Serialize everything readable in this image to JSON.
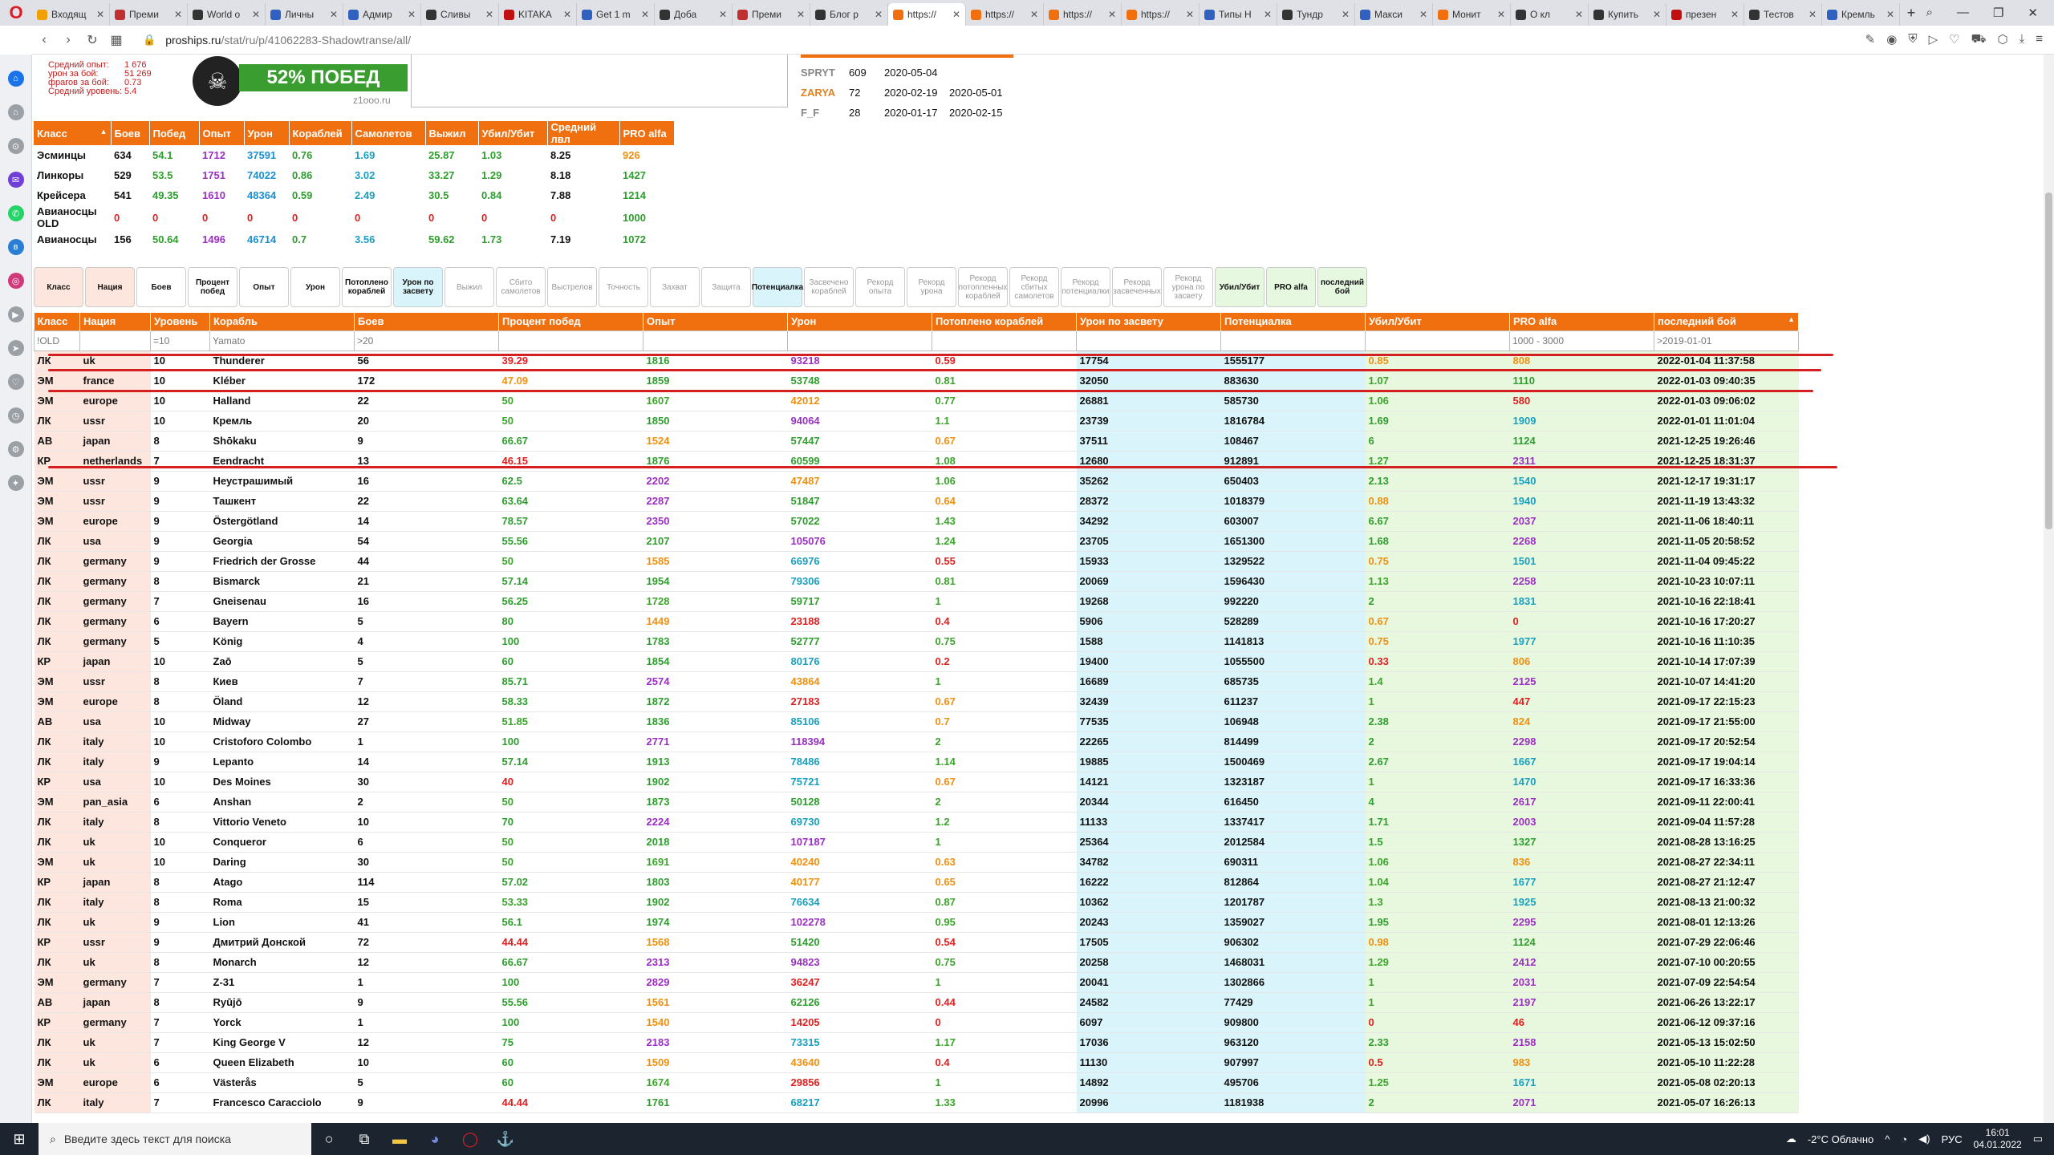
{
  "tabs": [
    {
      "label": "Входящ",
      "color": "#f0a000"
    },
    {
      "label": "Преми",
      "color": "#c03030"
    },
    {
      "label": "World o",
      "color": "#333333"
    },
    {
      "label": "Личны",
      "color": "#3060c0"
    },
    {
      "label": "Адмир",
      "color": "#3060c0"
    },
    {
      "label": "Сливы",
      "color": "#333333"
    },
    {
      "label": "KITAKA",
      "color": "#c01010"
    },
    {
      "label": "Get 1 m",
      "color": "#3060c0"
    },
    {
      "label": "Доба",
      "color": "#333333"
    },
    {
      "label": "Преми",
      "color": "#c03030"
    },
    {
      "label": "Блог р",
      "color": "#333333"
    },
    {
      "label": "https://",
      "color": "#f07010",
      "active": true
    },
    {
      "label": "https://",
      "color": "#f07010"
    },
    {
      "label": "https://",
      "color": "#f07010"
    },
    {
      "label": "https://",
      "color": "#f07010"
    },
    {
      "label": "Типы Н",
      "color": "#3060c0"
    },
    {
      "label": "Тундр",
      "color": "#333333"
    },
    {
      "label": "Макси",
      "color": "#3060c0"
    },
    {
      "label": "Монит",
      "color": "#f07010"
    },
    {
      "label": "О кл",
      "color": "#333333"
    },
    {
      "label": "Купить",
      "color": "#333333"
    },
    {
      "label": "презен",
      "color": "#c01010"
    },
    {
      "label": "Тестов",
      "color": "#333333"
    },
    {
      "label": "Кремль",
      "color": "#3060c0"
    }
  ],
  "address": {
    "domain": "proships.ru",
    "path": "/stat/ru/p/41062283-Shadowtranse/all/"
  },
  "summary": [
    {
      "k": "Средний опыт:",
      "v": "1 676"
    },
    {
      "k": "урон за бой:",
      "v": "51 269"
    },
    {
      "k": "фрагов за бой:",
      "v": "0.73"
    },
    {
      "k": "Средний уровень:",
      "v": "5.4"
    }
  ],
  "banner": {
    "win_text": "52% ПОБЕД",
    "site": "z1ooo.ru"
  },
  "clans": [
    {
      "tag": "SPRYT",
      "count": "609",
      "from": "2020-05-04",
      "to": "",
      "color": "#888888"
    },
    {
      "tag": "ZARYA",
      "count": "72",
      "from": "2020-02-19",
      "to": "2020-05-01",
      "color": "#e08020"
    },
    {
      "tag": "F_F",
      "count": "28",
      "from": "2020-01-17",
      "to": "2020-02-15",
      "color": "#888888"
    }
  ],
  "class_table": {
    "headers": [
      "Класс",
      "Боев",
      "Побед",
      "Опыт",
      "Урон",
      "Кораблей",
      "Самолетов",
      "Выжил",
      "Убил/Убит",
      "Средний лвл",
      "PRO alfa"
    ],
    "rows": [
      [
        "Эсминцы",
        "634",
        "54.1",
        "1712",
        "37591",
        "0.76",
        "1.69",
        "25.87",
        "1.03",
        "8.25",
        "926"
      ],
      [
        "Линкоры",
        "529",
        "53.5",
        "1751",
        "74022",
        "0.86",
        "3.02",
        "33.27",
        "1.29",
        "8.18",
        "1427"
      ],
      [
        "Крейсера",
        "541",
        "49.35",
        "1610",
        "48364",
        "0.59",
        "2.49",
        "30.5",
        "0.84",
        "7.88",
        "1214"
      ],
      [
        "Авианосцы OLD",
        "0",
        "0",
        "0",
        "0",
        "0",
        "0",
        "0",
        "0",
        "0",
        "1000"
      ],
      [
        "Авианосцы",
        "156",
        "50.64",
        "1496",
        "46714",
        "0.7",
        "3.56",
        "59.62",
        "1.73",
        "7.19",
        "1072"
      ]
    ]
  },
  "filters": [
    {
      "label": "Класс",
      "on": true,
      "style": "pink"
    },
    {
      "label": "Нация",
      "on": true,
      "style": "pink"
    },
    {
      "label": "Боев",
      "on": true,
      "style": ""
    },
    {
      "label": "Процент побед",
      "on": true,
      "style": ""
    },
    {
      "label": "Опыт",
      "on": true,
      "style": ""
    },
    {
      "label": "Урон",
      "on": true,
      "style": ""
    },
    {
      "label": "Потоплено кораблей",
      "on": true,
      "style": ""
    },
    {
      "label": "Урон по засвету",
      "on": true,
      "style": "cyan"
    },
    {
      "label": "Выжил",
      "on": false,
      "style": ""
    },
    {
      "label": "Сбито самолетов",
      "on": false,
      "style": ""
    },
    {
      "label": "Выстрелов",
      "on": false,
      "style": ""
    },
    {
      "label": "Точность",
      "on": false,
      "style": ""
    },
    {
      "label": "Захват",
      "on": false,
      "style": ""
    },
    {
      "label": "Защита",
      "on": false,
      "style": ""
    },
    {
      "label": "Потенциалка",
      "on": true,
      "style": "cyan"
    },
    {
      "label": "Засвечено кораблей",
      "on": false,
      "style": ""
    },
    {
      "label": "Рекорд опыта",
      "on": false,
      "style": ""
    },
    {
      "label": "Рекорд урона",
      "on": false,
      "style": ""
    },
    {
      "label": "Рекорд потопленных кораблей",
      "on": false,
      "style": ""
    },
    {
      "label": "Рекорд сбитых самолетов",
      "on": false,
      "style": ""
    },
    {
      "label": "Рекорд потенциалки",
      "on": false,
      "style": ""
    },
    {
      "label": "Рекорд засвеченных",
      "on": false,
      "style": ""
    },
    {
      "label": "Рекорд урона по засвету",
      "on": false,
      "style": ""
    },
    {
      "label": "Убил/Убит",
      "on": true,
      "style": "green"
    },
    {
      "label": "PRO alfa",
      "on": true,
      "style": "green"
    },
    {
      "label": "последний бой",
      "on": true,
      "style": "green"
    }
  ],
  "main_table": {
    "headers": [
      "Класс",
      "Нация",
      "Уровень",
      "Корабль",
      "Боев",
      "Процент побед",
      "Опыт",
      "Урон",
      "Потоплено кораблей",
      "Урон по засвету",
      "Потенциалка",
      "Убил/Убит",
      "PRO alfa",
      "последний бой"
    ],
    "filters": [
      "!OLD",
      "",
      "=10",
      "Yamato",
      ">20",
      "",
      "",
      "",
      "",
      "",
      "",
      "",
      "1000 - 3000",
      ">2019-01-01"
    ],
    "rows": [
      [
        "ЛК",
        "uk",
        "10",
        "Thunderer",
        "56",
        "39.29",
        "1816",
        "93218",
        "0.59",
        "17754",
        "1555177",
        "0.85",
        "808",
        "2022-01-04 11:37:58"
      ],
      [
        "ЭМ",
        "france",
        "10",
        "Kléber",
        "172",
        "47.09",
        "1859",
        "53748",
        "0.81",
        "32050",
        "883630",
        "1.07",
        "1110",
        "2022-01-03 09:40:35"
      ],
      [
        "ЭМ",
        "europe",
        "10",
        "Halland",
        "22",
        "50",
        "1607",
        "42012",
        "0.77",
        "26881",
        "585730",
        "1.06",
        "580",
        "2022-01-03 09:06:02"
      ],
      [
        "ЛК",
        "ussr",
        "10",
        "Кремль",
        "20",
        "50",
        "1850",
        "94064",
        "1.1",
        "23739",
        "1816784",
        "1.69",
        "1909",
        "2022-01-01 11:01:04"
      ],
      [
        "АВ",
        "japan",
        "8",
        "Shōkaku",
        "9",
        "66.67",
        "1524",
        "57447",
        "0.67",
        "37511",
        "108467",
        "6",
        "1124",
        "2021-12-25 19:26:46"
      ],
      [
        "КР",
        "netherlands",
        "7",
        "Eendracht",
        "13",
        "46.15",
        "1876",
        "60599",
        "1.08",
        "12680",
        "912891",
        "1.27",
        "2311",
        "2021-12-25 18:31:37"
      ],
      [
        "ЭМ",
        "ussr",
        "9",
        "Неустрашимый",
        "16",
        "62.5",
        "2202",
        "47487",
        "1.06",
        "35262",
        "650403",
        "2.13",
        "1540",
        "2021-12-17 19:31:17"
      ],
      [
        "ЭМ",
        "ussr",
        "9",
        "Ташкент",
        "22",
        "63.64",
        "2287",
        "51847",
        "0.64",
        "28372",
        "1018379",
        "0.88",
        "1940",
        "2021-11-19 13:43:32"
      ],
      [
        "ЭМ",
        "europe",
        "9",
        "Östergötland",
        "14",
        "78.57",
        "2350",
        "57022",
        "1.43",
        "34292",
        "603007",
        "6.67",
        "2037",
        "2021-11-06 18:40:11"
      ],
      [
        "ЛК",
        "usa",
        "9",
        "Georgia",
        "54",
        "55.56",
        "2107",
        "105076",
        "1.24",
        "23705",
        "1651300",
        "1.68",
        "2268",
        "2021-11-05 20:58:52"
      ],
      [
        "ЛК",
        "germany",
        "9",
        "Friedrich der Grosse",
        "44",
        "50",
        "1585",
        "66976",
        "0.55",
        "15933",
        "1329522",
        "0.75",
        "1501",
        "2021-11-04 09:45:22"
      ],
      [
        "ЛК",
        "germany",
        "8",
        "Bismarck",
        "21",
        "57.14",
        "1954",
        "79306",
        "0.81",
        "20069",
        "1596430",
        "1.13",
        "2258",
        "2021-10-23 10:07:11"
      ],
      [
        "ЛК",
        "germany",
        "7",
        "Gneisenau",
        "16",
        "56.25",
        "1728",
        "59717",
        "1",
        "19268",
        "992220",
        "2",
        "1831",
        "2021-10-16 22:18:41"
      ],
      [
        "ЛК",
        "germany",
        "6",
        "Bayern",
        "5",
        "80",
        "1449",
        "23188",
        "0.4",
        "5906",
        "528289",
        "0.67",
        "0",
        "2021-10-16 17:20:27"
      ],
      [
        "ЛК",
        "germany",
        "5",
        "König",
        "4",
        "100",
        "1783",
        "52777",
        "0.75",
        "1588",
        "1141813",
        "0.75",
        "1977",
        "2021-10-16 11:10:35"
      ],
      [
        "КР",
        "japan",
        "10",
        "Zaō",
        "5",
        "60",
        "1854",
        "80176",
        "0.2",
        "19400",
        "1055500",
        "0.33",
        "806",
        "2021-10-14 17:07:39"
      ],
      [
        "ЭМ",
        "ussr",
        "8",
        "Киев",
        "7",
        "85.71",
        "2574",
        "43864",
        "1",
        "16689",
        "685735",
        "1.4",
        "2125",
        "2021-10-07 14:41:20"
      ],
      [
        "ЭМ",
        "europe",
        "8",
        "Öland",
        "12",
        "58.33",
        "1872",
        "27183",
        "0.67",
        "32439",
        "611237",
        "1",
        "447",
        "2021-09-17 22:15:23"
      ],
      [
        "АВ",
        "usa",
        "10",
        "Midway",
        "27",
        "51.85",
        "1836",
        "85106",
        "0.7",
        "77535",
        "106948",
        "2.38",
        "824",
        "2021-09-17 21:55:00"
      ],
      [
        "ЛК",
        "italy",
        "10",
        "Cristoforo Colombo",
        "1",
        "100",
        "2771",
        "118394",
        "2",
        "22265",
        "814499",
        "2",
        "2298",
        "2021-09-17 20:52:54"
      ],
      [
        "ЛК",
        "italy",
        "9",
        "Lepanto",
        "14",
        "57.14",
        "1913",
        "78486",
        "1.14",
        "19885",
        "1500469",
        "2.67",
        "1667",
        "2021-09-17 19:04:14"
      ],
      [
        "КР",
        "usa",
        "10",
        "Des Moines",
        "30",
        "40",
        "1902",
        "75721",
        "0.67",
        "14121",
        "1323187",
        "1",
        "1470",
        "2021-09-17 16:33:36"
      ],
      [
        "ЭМ",
        "pan_asia",
        "6",
        "Anshan",
        "2",
        "50",
        "1873",
        "50128",
        "2",
        "20344",
        "616450",
        "4",
        "2617",
        "2021-09-11 22:00:41"
      ],
      [
        "ЛК",
        "italy",
        "8",
        "Vittorio Veneto",
        "10",
        "70",
        "2224",
        "69730",
        "1.2",
        "11133",
        "1337417",
        "1.71",
        "2003",
        "2021-09-04 11:57:28"
      ],
      [
        "ЛК",
        "uk",
        "10",
        "Conqueror",
        "6",
        "50",
        "2018",
        "107187",
        "1",
        "25364",
        "2012584",
        "1.5",
        "1327",
        "2021-08-28 13:16:25"
      ],
      [
        "ЭМ",
        "uk",
        "10",
        "Daring",
        "30",
        "50",
        "1691",
        "40240",
        "0.63",
        "34782",
        "690311",
        "1.06",
        "836",
        "2021-08-27 22:34:11"
      ],
      [
        "КР",
        "japan",
        "8",
        "Atago",
        "114",
        "57.02",
        "1803",
        "40177",
        "0.65",
        "16222",
        "812864",
        "1.04",
        "1677",
        "2021-08-27 21:12:47"
      ],
      [
        "ЛК",
        "italy",
        "8",
        "Roma",
        "15",
        "53.33",
        "1902",
        "76634",
        "0.87",
        "10362",
        "1201787",
        "1.3",
        "1925",
        "2021-08-13 21:00:32"
      ],
      [
        "ЛК",
        "uk",
        "9",
        "Lion",
        "41",
        "56.1",
        "1974",
        "102278",
        "0.95",
        "20243",
        "1359027",
        "1.95",
        "2295",
        "2021-08-01 12:13:26"
      ],
      [
        "КР",
        "ussr",
        "9",
        "Дмитрий Донской",
        "72",
        "44.44",
        "1568",
        "51420",
        "0.54",
        "17505",
        "906302",
        "0.98",
        "1124",
        "2021-07-29 22:06:46"
      ],
      [
        "ЛК",
        "uk",
        "8",
        "Monarch",
        "12",
        "66.67",
        "2313",
        "94823",
        "0.75",
        "20258",
        "1468031",
        "1.29",
        "2412",
        "2021-07-10 00:20:55"
      ],
      [
        "ЭМ",
        "germany",
        "7",
        "Z-31",
        "1",
        "100",
        "2829",
        "36247",
        "1",
        "20041",
        "1302866",
        "1",
        "2031",
        "2021-07-09 22:54:54"
      ],
      [
        "АВ",
        "japan",
        "8",
        "Ryūjō",
        "9",
        "55.56",
        "1561",
        "62126",
        "0.44",
        "24582",
        "77429",
        "1",
        "2197",
        "2021-06-26 13:22:17"
      ],
      [
        "КР",
        "germany",
        "7",
        "Yorck",
        "1",
        "100",
        "1540",
        "14205",
        "0",
        "6097",
        "909800",
        "0",
        "46",
        "2021-06-12 09:37:16"
      ],
      [
        "ЛК",
        "uk",
        "7",
        "King George V",
        "12",
        "75",
        "2183",
        "73315",
        "1.17",
        "17036",
        "963120",
        "2.33",
        "2158",
        "2021-05-13 15:02:50"
      ],
      [
        "ЛК",
        "uk",
        "6",
        "Queen Elizabeth",
        "10",
        "60",
        "1509",
        "43640",
        "0.4",
        "11130",
        "907997",
        "0.5",
        "983",
        "2021-05-10 11:22:28"
      ],
      [
        "ЭМ",
        "europe",
        "6",
        "Västerås",
        "5",
        "60",
        "1674",
        "29856",
        "1",
        "14892",
        "495706",
        "1.25",
        "1671",
        "2021-05-08 02:20:13"
      ],
      [
        "ЛК",
        "italy",
        "7",
        "Francesco Caracciolo",
        "9",
        "44.44",
        "1761",
        "68217",
        "1.33",
        "20996",
        "1181938",
        "2",
        "2071",
        "2021-05-07 16:26:13"
      ]
    ]
  },
  "colors": {
    "accent": "#f07010",
    "header_text": "#ffffff",
    "pink_cell": "#fde6dd",
    "cyan_cell": "#d9f4fa",
    "green_cell": "#e8f8df",
    "marker": "#d42020"
  },
  "taskbar": {
    "search_placeholder": "Введите здесь текст для поиска",
    "weather": "-2°C Облачно",
    "lang": "РУС",
    "time": "16:01",
    "date": "04.01.2022"
  }
}
